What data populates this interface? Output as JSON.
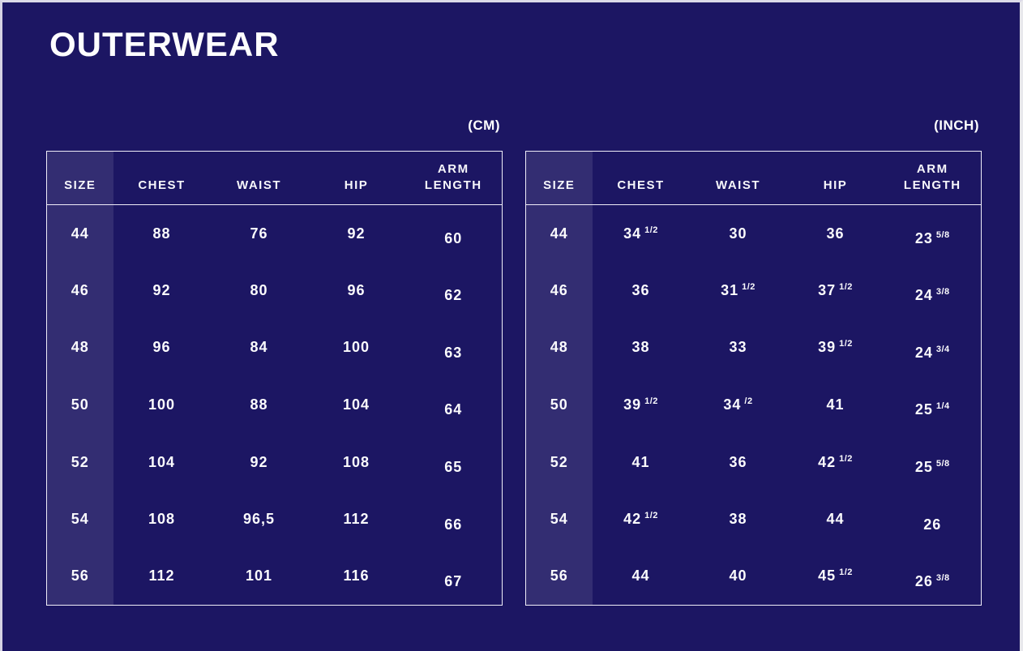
{
  "page": {
    "title": "OUTERWEAR"
  },
  "colors": {
    "background": "#1c1663",
    "size_column_highlight": "#322e75",
    "table_border": "#efedf8",
    "text": "#ffffff",
    "edge_strip": "#dcdae8"
  },
  "chart_data": [
    {
      "type": "table",
      "title": "OUTERWEAR",
      "unit_label": "(CM)",
      "headers": [
        "SIZE",
        "CHEST",
        "WAIST",
        "HIP",
        "ARM LENGTH"
      ],
      "rows": [
        [
          "44",
          "88",
          "76",
          "92",
          "60"
        ],
        [
          "46",
          "92",
          "80",
          "96",
          "62"
        ],
        [
          "48",
          "96",
          "84",
          "100",
          "63"
        ],
        [
          "50",
          "100",
          "88",
          "104",
          "64"
        ],
        [
          "52",
          "104",
          "92",
          "108",
          "65"
        ],
        [
          "54",
          "108",
          "96,5",
          "112",
          "66"
        ],
        [
          "56",
          "112",
          "101",
          "116",
          "67"
        ]
      ]
    },
    {
      "type": "table",
      "title": "OUTERWEAR",
      "unit_label": "(INCH)",
      "headers": [
        "SIZE",
        "CHEST",
        "WAIST",
        "HIP",
        "ARM LENGTH"
      ],
      "rows": [
        [
          "44",
          {
            "v": "34",
            "f": "1/2"
          },
          {
            "v": "30"
          },
          {
            "v": "36"
          },
          {
            "v": "23",
            "f": "5/8"
          }
        ],
        [
          "46",
          {
            "v": "36"
          },
          {
            "v": "31",
            "f": "1/2"
          },
          {
            "v": "37",
            "f": "1/2"
          },
          {
            "v": "24",
            "f": "3/8"
          }
        ],
        [
          "48",
          {
            "v": "38"
          },
          {
            "v": "33"
          },
          {
            "v": "39",
            "f": "1/2"
          },
          {
            "v": "24",
            "f": "3/4"
          }
        ],
        [
          "50",
          {
            "v": "39",
            "f": "1/2"
          },
          {
            "v": "34",
            "f": "/2"
          },
          {
            "v": "41"
          },
          {
            "v": "25",
            "f": "1/4"
          }
        ],
        [
          "52",
          {
            "v": "41"
          },
          {
            "v": "36"
          },
          {
            "v": "42",
            "f": "1/2"
          },
          {
            "v": "25",
            "f": "5/8"
          }
        ],
        [
          "54",
          {
            "v": "42",
            "f": "1/2"
          },
          {
            "v": "38"
          },
          {
            "v": "44"
          },
          {
            "v": "26"
          }
        ],
        [
          "56",
          {
            "v": "44"
          },
          {
            "v": "40"
          },
          {
            "v": "45",
            "f": "1/2"
          },
          {
            "v": "26",
            "f": "3/8"
          }
        ]
      ]
    }
  ]
}
